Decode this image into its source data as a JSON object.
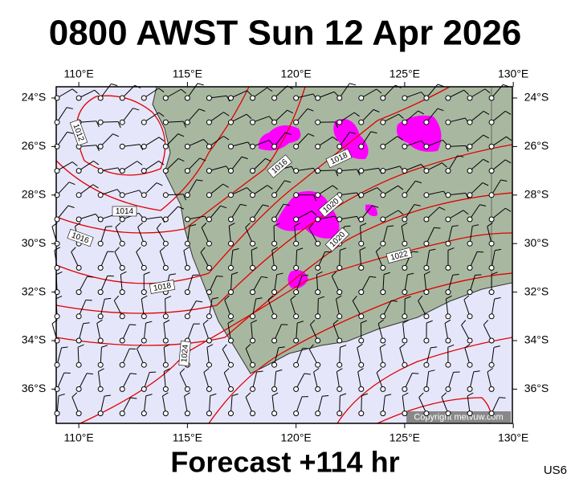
{
  "header": {
    "title": "0800 AWST Sun 12 Apr 2026"
  },
  "map": {
    "lon_ticks": [
      {
        "value": 110,
        "label": "110°E"
      },
      {
        "value": 115,
        "label": "115°E"
      },
      {
        "value": 120,
        "label": "120°E"
      },
      {
        "value": 125,
        "label": "125°E"
      },
      {
        "value": 130,
        "label": "130°E"
      }
    ],
    "lat_ticks": [
      {
        "value": -24,
        "label": "24°S"
      },
      {
        "value": -26,
        "label": "26°S"
      },
      {
        "value": -28,
        "label": "28°S"
      },
      {
        "value": -30,
        "label": "30°S"
      },
      {
        "value": -32,
        "label": "32°S"
      },
      {
        "value": -34,
        "label": "34°S"
      },
      {
        "value": -36,
        "label": "36°S"
      }
    ],
    "isobar_labels": [
      1012,
      1014,
      1016,
      1016,
      1018,
      1018,
      1020,
      1020,
      1022,
      1024
    ],
    "copyright": "Copyright metvuw.com"
  },
  "footer": {
    "forecast": "Forecast +114 hr",
    "code": "US6"
  }
}
